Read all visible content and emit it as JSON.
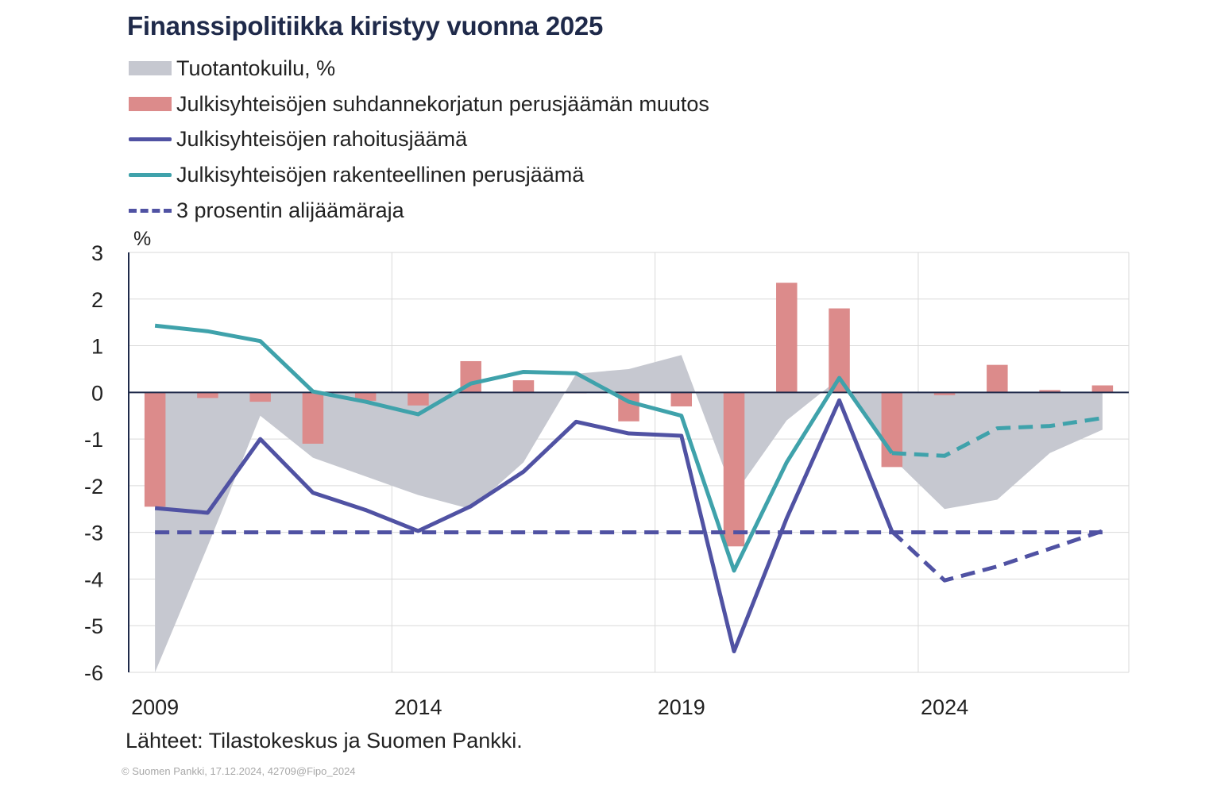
{
  "title": "Finanssipolitiikka kiristyy vuonna 2025",
  "legend": [
    {
      "label": "Tuotantokuilu, %",
      "kind": "area",
      "color": "#c6c8d0"
    },
    {
      "label": "Julkisyhteisöjen suhdannekorjatun perusjäämän muutos",
      "kind": "bar",
      "color": "#dc8b8b"
    },
    {
      "label": "Julkisyhteisöjen rahoitusjäämä",
      "kind": "line",
      "color": "#5052a3"
    },
    {
      "label": "Julkisyhteisöjen rakenteellinen perusjäämä",
      "kind": "line",
      "color": "#3fa2ab"
    },
    {
      "label": "3 prosentin alijäämäraja",
      "kind": "dashed",
      "color": "#5052a3"
    }
  ],
  "source": "Lähteet: Tilastokeskus ja Suomen Pankki.",
  "copyright": "© Suomen Pankki, 17.12.2024, 42709@Fipo_2024",
  "chart_data": {
    "type": "bar+line+area",
    "title": "Finanssipolitiikka kiristyy vuonna 2025",
    "ylabel": "%",
    "ylim": [
      -6,
      3
    ],
    "yticks": [
      "3",
      "2",
      "1",
      "0",
      "-1",
      "-2",
      "-3",
      "-4",
      "-5",
      "-6"
    ],
    "ytick_values": [
      3,
      2,
      1,
      0,
      -1,
      -2,
      -3,
      -4,
      -5,
      -6
    ],
    "xlim": [
      2008.5,
      2027.5
    ],
    "xticks": [
      "2009",
      "2014",
      "2019",
      "2024"
    ],
    "xtick_values": [
      2009,
      2014,
      2019,
      2024
    ],
    "forecast_start": 2023,
    "x": [
      2009,
      2010,
      2011,
      2012,
      2013,
      2014,
      2015,
      2016,
      2017,
      2018,
      2019,
      2020,
      2021,
      2022,
      2023,
      2024,
      2025,
      2026,
      2027
    ],
    "series": [
      {
        "name": "Tuotantokuilu, %",
        "type": "area",
        "color": "#c6c8d0",
        "values": [
          -6.1,
          -3.3,
          -0.5,
          -1.4,
          -1.8,
          -2.2,
          -2.5,
          -1.5,
          0.4,
          0.5,
          0.8,
          -2.2,
          -0.6,
          0.3,
          -1.4,
          -2.5,
          -2.3,
          -1.3,
          -0.8
        ]
      },
      {
        "name": "Julkisyhteisöjen suhdannekorjatun perusjäämän muutos",
        "type": "bar",
        "color": "#dc8b8b",
        "values": [
          -2.45,
          -0.12,
          -0.2,
          -1.1,
          -0.18,
          -0.28,
          0.67,
          0.26,
          -0.02,
          -0.62,
          -0.3,
          -3.3,
          2.35,
          1.8,
          -1.6,
          -0.06,
          0.59,
          0.05,
          0.15
        ]
      },
      {
        "name": "Julkisyhteisöjen rahoitusjäämä",
        "type": "line",
        "color": "#5052a3",
        "forecast_style": "dashed",
        "values": [
          -2.48,
          -2.58,
          -1.0,
          -2.15,
          -2.52,
          -2.97,
          -2.44,
          -1.7,
          -0.63,
          -0.88,
          -0.93,
          -5.55,
          -2.7,
          -0.17,
          -2.98,
          -4.03,
          -3.73,
          -3.35,
          -2.97
        ]
      },
      {
        "name": "Julkisyhteisöjen rakenteellinen perusjäämä",
        "type": "line",
        "color": "#3fa2ab",
        "forecast_style": "dashed",
        "values": [
          1.43,
          1.31,
          1.1,
          0.02,
          -0.2,
          -0.47,
          0.19,
          0.44,
          0.41,
          -0.2,
          -0.5,
          -3.82,
          -1.5,
          0.31,
          -1.3,
          -1.36,
          -0.77,
          -0.72,
          -0.55
        ]
      },
      {
        "name": "3 prosentin alijäämäraja",
        "type": "line",
        "color": "#5052a3",
        "style": "dashed",
        "values": [
          -3,
          -3,
          -3,
          -3,
          -3,
          -3,
          -3,
          -3,
          -3,
          -3,
          -3,
          -3,
          -3,
          -3,
          -3,
          -3,
          -3,
          -3,
          -3
        ]
      }
    ]
  }
}
